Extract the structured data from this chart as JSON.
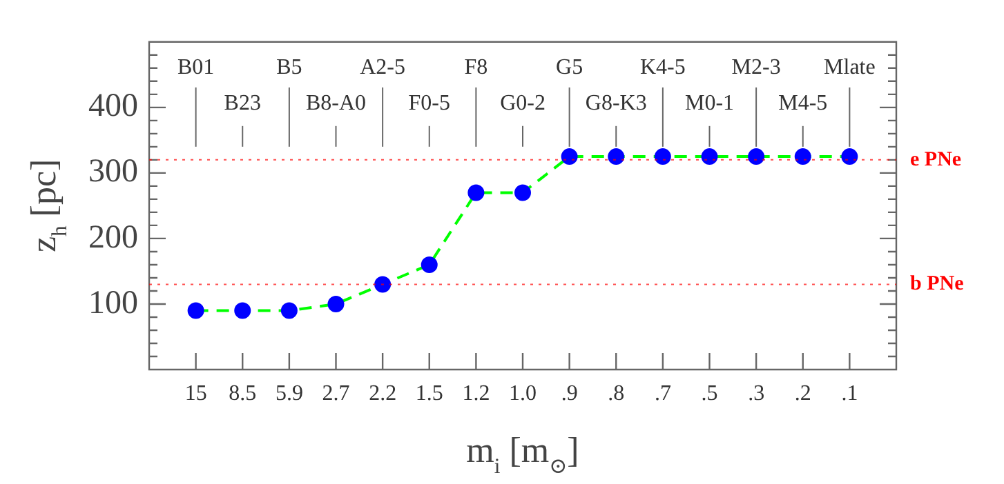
{
  "chart_data": {
    "type": "line",
    "xlabel": "m$_{i}$ [m$_{⊙}$]",
    "ylabel": "z$_{h}$ [pc]",
    "categories": [
      "15",
      "8.5",
      "5.9",
      "2.7",
      "2.2",
      "1.5",
      "1.2",
      "1.0",
      ".9",
      ".8",
      ".7",
      ".5",
      ".3",
      ".2",
      ".1"
    ],
    "series": [
      {
        "color": "#00ff00",
        "colors": [
          "#0000ff",
          "#0000ff",
          "#0000ff",
          "#0000ff",
          "#0000ff",
          "#0000ff",
          "#0000ff",
          "#0000ff",
          "#0000ff",
          "#0000ff",
          "#0000ff",
          "#0000ff",
          "#0000ff",
          "#0000ff",
          "#0000ff"
        ],
        "values": [
          90,
          90,
          90,
          100,
          130,
          160,
          270,
          270,
          325,
          325,
          325,
          325,
          325,
          325,
          325
        ],
        "line_style": "dashed",
        "marker": "circle"
      }
    ],
    "ylim": [
      0,
      500
    ],
    "yticks": [
      {
        "value": 20,
        "label": null
      },
      {
        "value": 40,
        "label": null
      },
      {
        "value": 60,
        "label": null
      },
      {
        "value": 80,
        "label": null
      },
      100,
      {
        "value": 120,
        "label": null
      },
      {
        "value": 140,
        "label": null
      },
      {
        "value": 160,
        "label": null
      },
      {
        "value": 180,
        "label": null
      },
      200,
      {
        "value": 220,
        "label": null
      },
      {
        "value": 240,
        "label": null
      },
      {
        "value": 260,
        "label": null
      },
      {
        "value": 280,
        "label": null
      },
      300,
      {
        "value": 320,
        "label": null
      },
      {
        "value": 340,
        "label": null
      },
      {
        "value": 360,
        "label": null
      },
      {
        "value": 380,
        "label": null
      },
      400,
      {
        "value": 420,
        "label": null
      },
      {
        "value": 440,
        "label": null
      },
      {
        "value": 460,
        "label": null
      },
      {
        "value": 480,
        "label": null
      }
    ],
    "ref_lines": [
      {
        "axis": "y",
        "value": 320,
        "label": "e PNe",
        "color": "#ff0000",
        "line_style": "dotted"
      },
      {
        "axis": "y",
        "value": 130,
        "label": "b PNe",
        "color": "#ff0000",
        "line_style": "dotted"
      }
    ],
    "annotations": [
      {
        "text": "B01",
        "x": "15"
      },
      {
        "text": "B23",
        "x": "8.5"
      },
      {
        "text": "B5",
        "x": "5.9"
      },
      {
        "text": "B8-A0",
        "x": "2.7"
      },
      {
        "text": "A2-5",
        "x": "2.2"
      },
      {
        "text": "F0-5",
        "x": "1.5"
      },
      {
        "text": "F8",
        "x": "1.2"
      },
      {
        "text": "G0-2",
        "x": "1.0"
      },
      {
        "text": "G5",
        "x": ".9"
      },
      {
        "text": "G8-K3",
        "x": ".8"
      },
      {
        "text": "K4-5",
        "x": ".7"
      },
      {
        "text": "M0-1",
        "x": ".5"
      },
      {
        "text": "M2-3",
        "x": ".3"
      },
      {
        "text": "M4-5",
        "x": ".2"
      },
      {
        "text": "Mlate",
        "x": ".1"
      }
    ],
    "legend": false,
    "grid": false
  }
}
